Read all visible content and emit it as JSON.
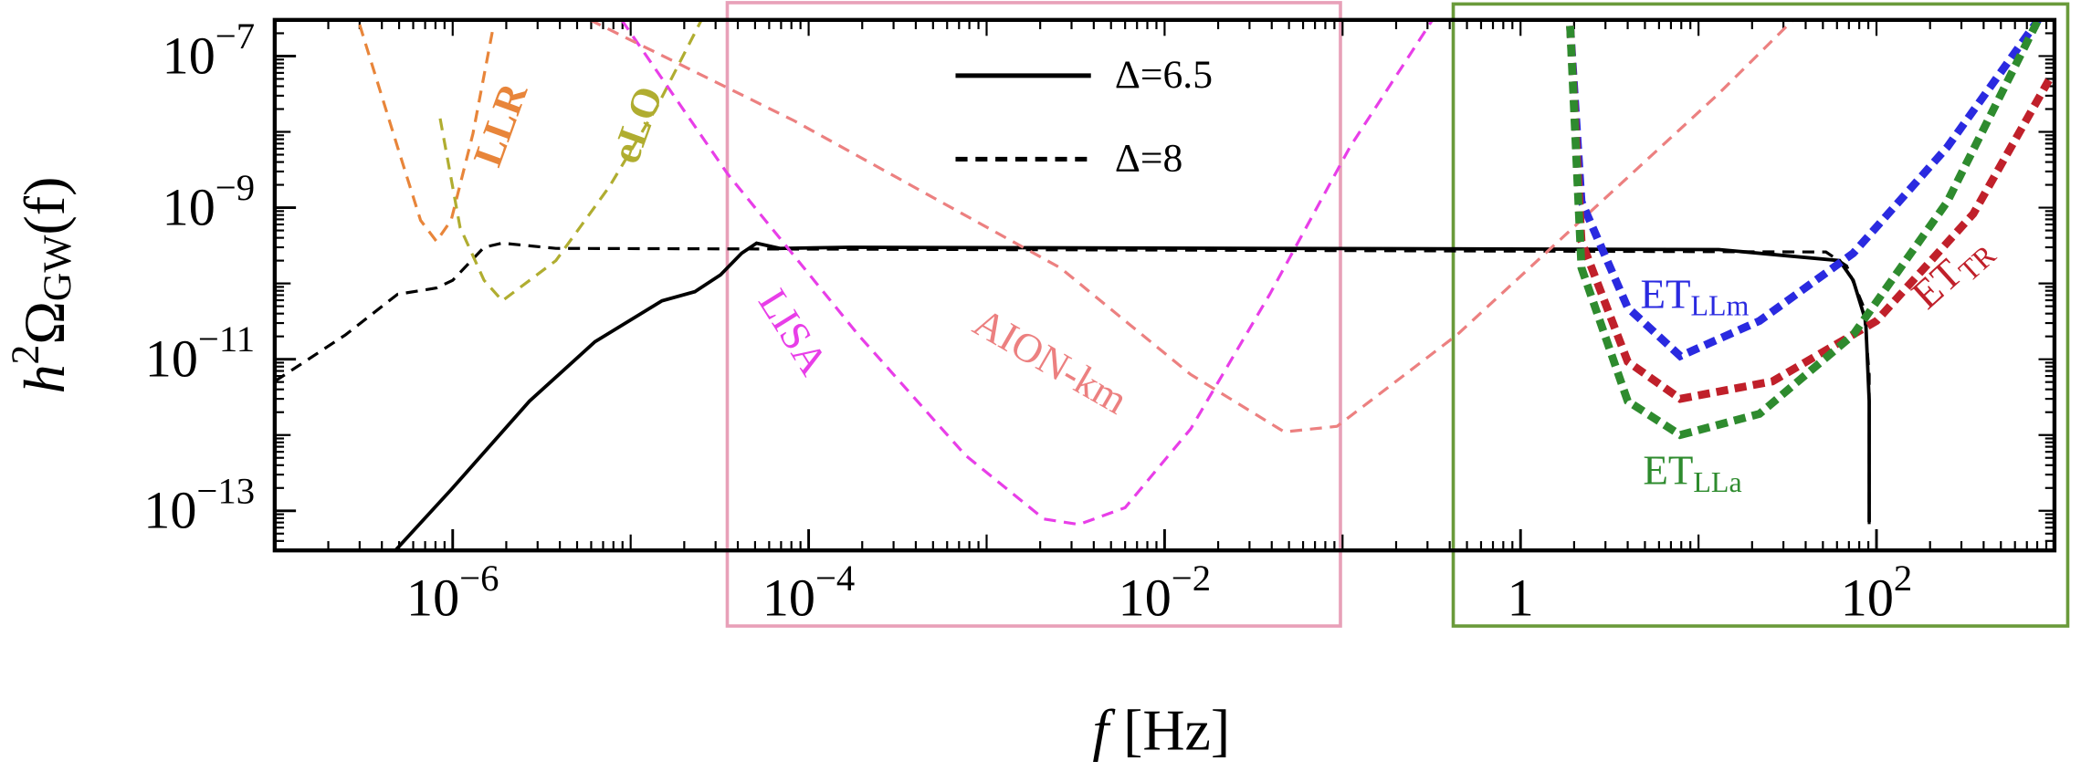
{
  "chart_data": {
    "type": "line",
    "xlabel": "f [Hz]",
    "ylabel": "h2ΩGW(f)",
    "xscale": "log",
    "yscale": "log",
    "xlim": [
      1e-07,
      1000
    ],
    "ylim": [
      3e-14,
      3e-07
    ],
    "xticks": [
      {
        "value": 1e-06,
        "label": "10−6"
      },
      {
        "value": 0.0001,
        "label": "10−4"
      },
      {
        "value": 0.01,
        "label": "10−2"
      },
      1,
      {
        "value": 100,
        "label": "102"
      }
    ],
    "yticks": [
      {
        "value": 1e-07,
        "label": "10−7"
      },
      {
        "value": 1e-09,
        "label": "10−9"
      },
      {
        "value": 1e-11,
        "label": "10−11"
      },
      {
        "value": 1e-13,
        "label": "10−13"
      }
    ],
    "series": [
      {
        "name": "Δ=6.5",
        "color": "#000000",
        "linestyle": "solid",
        "legend": true,
        "x": [
          4.7e-07,
          9.8e-07,
          2.7e-06,
          6.3e-06,
          1.5e-05,
          2.3e-05,
          3.2e-05,
          4.2e-05,
          5.1e-05,
          6.9e-05,
          0.00017,
          13,
          62,
          74,
          87,
          91,
          91
        ],
        "values": [
          2.9e-14,
          1.9e-13,
          2.8e-12,
          1.7e-11,
          5.9e-11,
          7.8e-11,
          1.3e-10,
          2.5e-10,
          3.4e-10,
          2.9e-10,
          3e-10,
          2.8e-10,
          2e-10,
          1.1e-10,
          3.2e-11,
          2.8e-12,
          7.1e-14
        ]
      },
      {
        "name": "Δ=8",
        "color": "#000000",
        "linestyle": "dashed",
        "legend": true,
        "x": [
          1e-07,
          2.5e-07,
          4.9e-07,
          8.1e-07,
          1e-06,
          1.5e-06,
          1.9e-06,
          3.8e-06,
          52,
          68,
          85,
          91,
          91
        ],
        "values": [
          5.1e-12,
          2.1e-11,
          7.2e-11,
          8.7e-11,
          1.1e-10,
          3e-10,
          3.4e-10,
          2.9e-10,
          2.6e-10,
          1.7e-10,
          4.8e-11,
          6.2e-12,
          5.8e-14
        ]
      },
      {
        "color": "#e8853a",
        "linestyle": "dashed",
        "x": [
          3e-07,
          4.9e-07,
          6.6e-07,
          8.1e-07,
          9.8e-07,
          1.3e-06,
          1.7e-06
        ],
        "values": [
          2.6e-07,
          6.3e-09,
          6.8e-10,
          3.6e-10,
          6.8e-10,
          9.5e-09,
          2.6e-07
        ]
      },
      {
        "color": "#b0ad30",
        "linestyle": "dashed",
        "x": [
          8.5e-07,
          1.1e-06,
          1.5e-06,
          1.9e-06,
          3.8e-06,
          7.6e-06,
          1.4e-05,
          2.5e-05
        ],
        "values": [
          1.5e-08,
          5.5e-10,
          1.1e-10,
          5.9e-11,
          2e-10,
          1.9e-09,
          2.1e-08,
          3e-07
        ]
      },
      {
        "color": "#e83ee8",
        "linestyle": "dashed",
        "x": [
          8.9e-06,
          3.5e-05,
          0.00019,
          0.00076,
          0.0021,
          0.0033,
          0.006,
          0.014,
          0.039,
          0.11,
          0.32
        ],
        "values": [
          3e-07,
          2.8e-09,
          2.1e-11,
          5.4e-13,
          7.8e-14,
          6.6e-14,
          1.1e-13,
          1.2e-12,
          7.2e-11,
          6.3e-09,
          3e-07
        ]
      },
      {
        "color": "#ec8080",
        "linestyle": "dashed",
        "x": [
          5.9e-06,
          8.3e-05,
          0.0026,
          0.014,
          0.047,
          0.093,
          0.44,
          2.4,
          13,
          34
        ],
        "values": [
          3e-07,
          1.4e-08,
          1.6e-10,
          6.3e-12,
          1.1e-12,
          1.3e-12,
          2.1e-11,
          8.3e-10,
          3.2e-08,
          3e-07
        ]
      },
      {
        "color": "#2a2ae0",
        "linestyle": "dotted",
        "x": [
          1.9,
          2.2,
          4.0,
          7.9,
          22,
          74,
          250,
          810
        ],
        "values": [
          2.5e-07,
          1.2e-09,
          4.8e-11,
          1.1e-11,
          3.2e-11,
          2.5e-10,
          6.3e-09,
          3e-07
        ]
      },
      {
        "color": "#c0202a",
        "linestyle": "dotted",
        "x": [
          1.9,
          2.2,
          4.0,
          7.9,
          26,
          100,
          350,
          930
        ],
        "values": [
          2.5e-07,
          3.6e-10,
          9.3e-12,
          3e-12,
          5.1e-12,
          3.2e-11,
          8.3e-10,
          4.8e-08
        ]
      },
      {
        "color": "#2e8b2e",
        "linestyle": "dotted",
        "x": [
          1.9,
          2.2,
          4.0,
          7.9,
          22,
          74,
          250,
          810
        ],
        "values": [
          2.5e-07,
          1.6e-10,
          2.8e-12,
          1e-12,
          1.9e-12,
          2.1e-11,
          1.2e-09,
          3e-07
        ]
      }
    ],
    "annotations": [
      {
        "text": "LLR",
        "color": "#e8853a"
      },
      {
        "text": "eLO",
        "color": "#b0ad30"
      },
      {
        "text": "LISA",
        "color": "#e83ee8"
      },
      {
        "text": "AION-km",
        "color": "#ec8080"
      },
      {
        "text": "ET",
        "subscript": "LLm",
        "color": "#2a2ae0"
      },
      {
        "text": "ET",
        "subscript": "TR",
        "color": "#c0202a"
      },
      {
        "text": "ET",
        "subscript": "LLa",
        "color": "#2e8b2e"
      }
    ]
  }
}
